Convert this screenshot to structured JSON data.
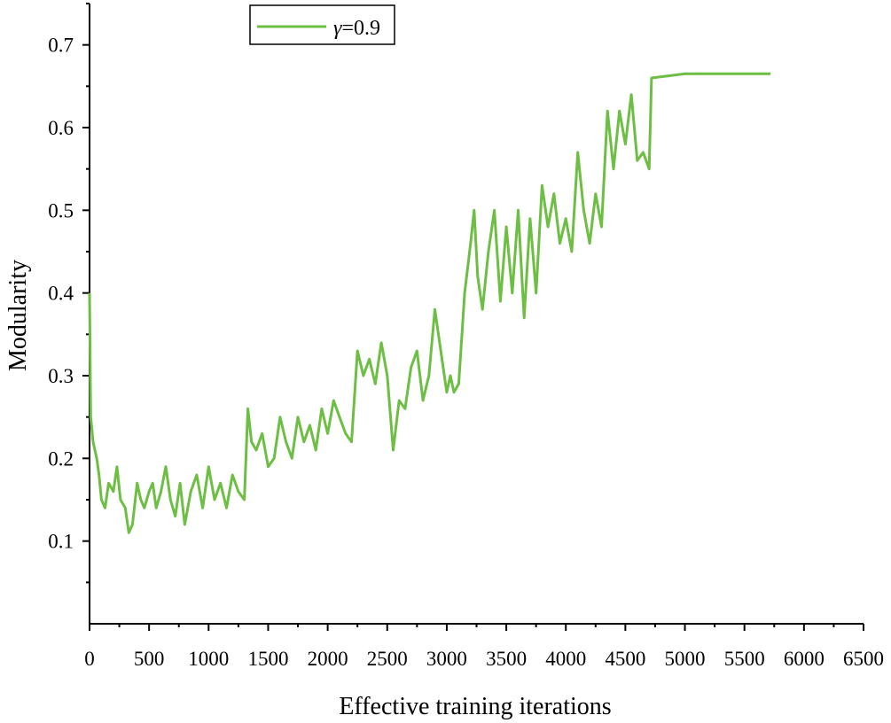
{
  "chart_data": {
    "type": "line",
    "title": "",
    "xlabel": "Effective training iterations",
    "ylabel": "Modularity",
    "xlim": [
      0,
      6500
    ],
    "ylim": [
      0.0,
      0.75
    ],
    "xticks": [
      0,
      500,
      1000,
      1500,
      2000,
      2500,
      3000,
      3500,
      4000,
      4500,
      5000,
      5500,
      6000,
      6500
    ],
    "xtick_labels": [
      "0",
      "500",
      "1000",
      "1500",
      "2000",
      "2500",
      "3000",
      "3500",
      "4000",
      "4500",
      "5000",
      "5500",
      "6000",
      "6500"
    ],
    "yticks": [
      0.1,
      0.2,
      0.3,
      0.4,
      0.5,
      0.6,
      0.7
    ],
    "ytick_labels": [
      "0.1",
      "0.2",
      "0.3",
      "0.4",
      "0.5",
      "0.6",
      "0.7"
    ],
    "grid": false,
    "legend": {
      "position": "top-center",
      "entries": [
        {
          "symbol": "γ",
          "text": "=0.9"
        }
      ]
    },
    "series": [
      {
        "name": "γ=0.9",
        "color": "#6dbf44",
        "x": [
          0,
          10,
          30,
          60,
          80,
          100,
          130,
          160,
          200,
          230,
          260,
          300,
          330,
          360,
          400,
          430,
          460,
          500,
          530,
          560,
          600,
          640,
          680,
          720,
          760,
          800,
          850,
          900,
          950,
          1000,
          1050,
          1100,
          1150,
          1200,
          1250,
          1300,
          1330,
          1360,
          1400,
          1450,
          1500,
          1550,
          1600,
          1650,
          1700,
          1750,
          1800,
          1850,
          1900,
          1950,
          2000,
          2050,
          2100,
          2150,
          2200,
          2250,
          2300,
          2350,
          2400,
          2450,
          2500,
          2550,
          2600,
          2650,
          2700,
          2750,
          2800,
          2850,
          2900,
          2950,
          3000,
          3030,
          3060,
          3100,
          3150,
          3200,
          3230,
          3260,
          3300,
          3350,
          3400,
          3450,
          3500,
          3550,
          3600,
          3650,
          3700,
          3750,
          3800,
          3850,
          3900,
          3950,
          4000,
          4050,
          4100,
          4150,
          4200,
          4250,
          4300,
          4350,
          4400,
          4450,
          4500,
          4550,
          4600,
          4650,
          4700,
          4720,
          5000,
          5500,
          5720
        ],
        "values": [
          0.4,
          0.25,
          0.22,
          0.2,
          0.18,
          0.15,
          0.14,
          0.17,
          0.16,
          0.19,
          0.15,
          0.14,
          0.11,
          0.12,
          0.17,
          0.15,
          0.14,
          0.16,
          0.17,
          0.14,
          0.16,
          0.19,
          0.15,
          0.13,
          0.17,
          0.12,
          0.16,
          0.18,
          0.14,
          0.19,
          0.15,
          0.17,
          0.14,
          0.18,
          0.16,
          0.15,
          0.26,
          0.22,
          0.21,
          0.23,
          0.19,
          0.2,
          0.25,
          0.22,
          0.2,
          0.25,
          0.22,
          0.24,
          0.21,
          0.26,
          0.23,
          0.27,
          0.25,
          0.23,
          0.22,
          0.33,
          0.3,
          0.32,
          0.29,
          0.34,
          0.3,
          0.21,
          0.27,
          0.26,
          0.31,
          0.33,
          0.27,
          0.3,
          0.38,
          0.33,
          0.28,
          0.3,
          0.28,
          0.29,
          0.4,
          0.46,
          0.5,
          0.42,
          0.38,
          0.45,
          0.5,
          0.39,
          0.48,
          0.4,
          0.5,
          0.37,
          0.49,
          0.4,
          0.53,
          0.48,
          0.52,
          0.46,
          0.49,
          0.45,
          0.57,
          0.5,
          0.46,
          0.52,
          0.48,
          0.62,
          0.55,
          0.62,
          0.58,
          0.64,
          0.56,
          0.57,
          0.55,
          0.66,
          0.665,
          0.665,
          0.665
        ]
      }
    ]
  }
}
